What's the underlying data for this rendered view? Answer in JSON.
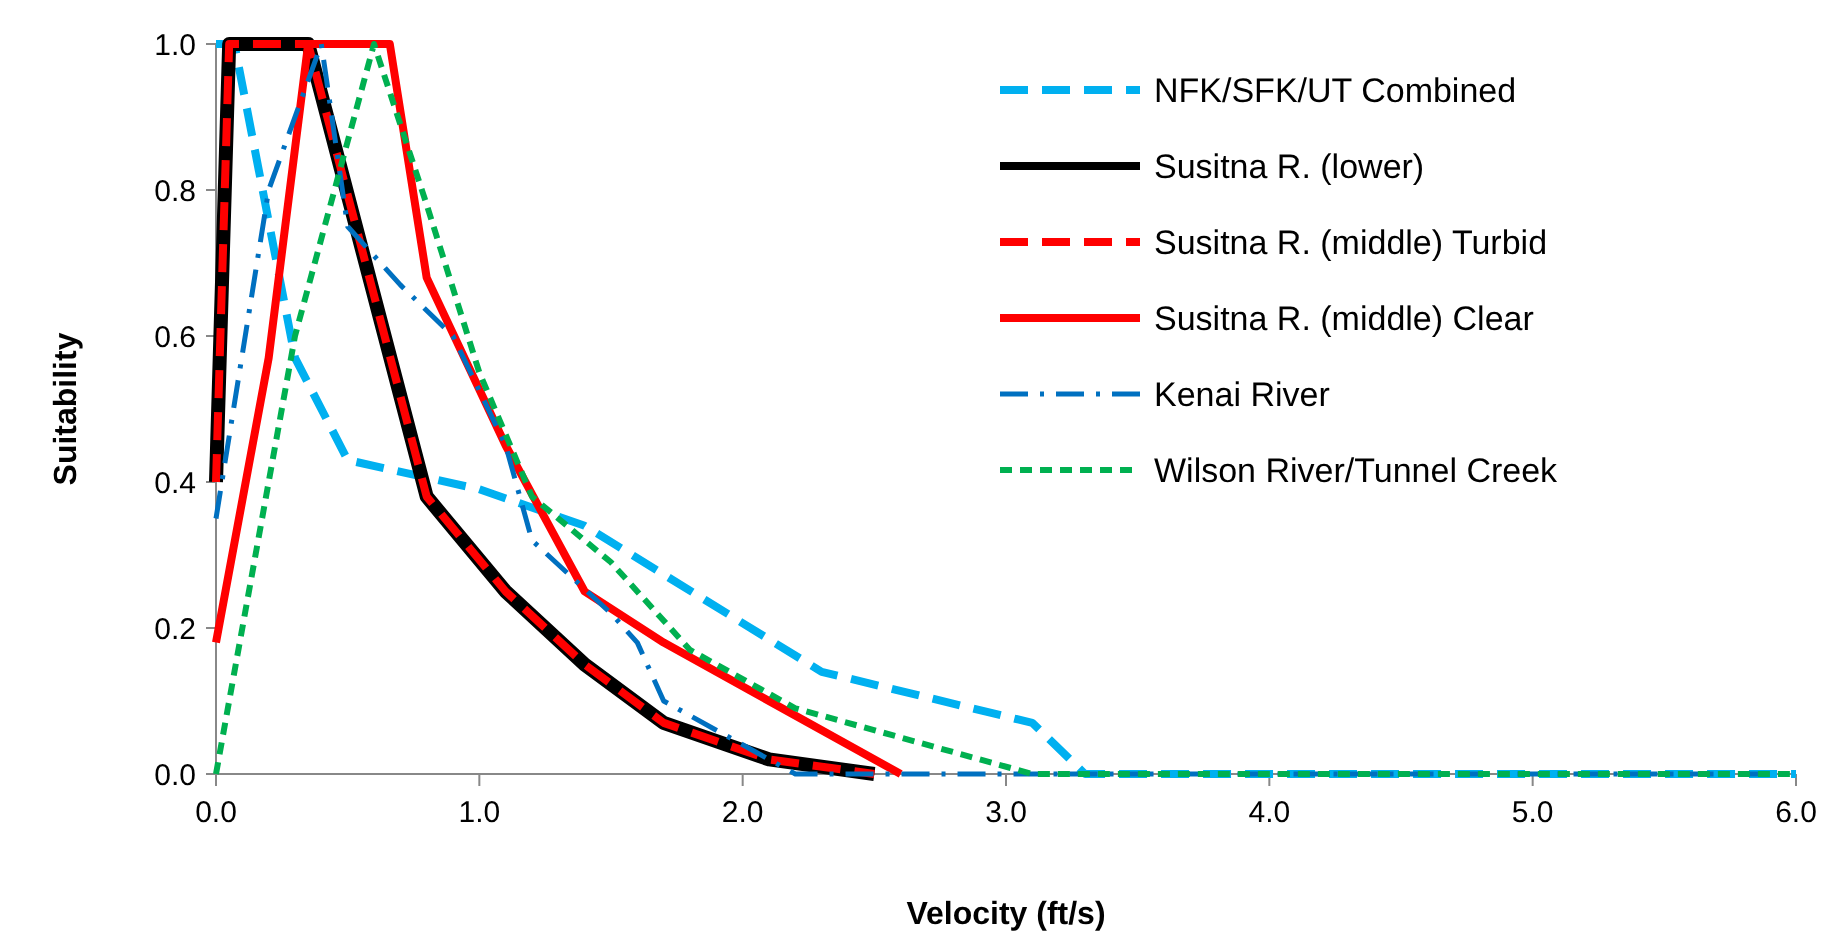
{
  "chart_data": {
    "type": "line",
    "xlabel": "Velocity (ft/s)",
    "ylabel": "Suitability",
    "xlim": [
      0,
      6
    ],
    "ylim": [
      0,
      1
    ],
    "xticks": [
      {
        "value": 0,
        "label": "0.0"
      },
      {
        "value": 1,
        "label": "1.0"
      },
      {
        "value": 2,
        "label": "2.0"
      },
      {
        "value": 3,
        "label": "3.0"
      },
      {
        "value": 4,
        "label": "4.0"
      },
      {
        "value": 5,
        "label": "5.0"
      },
      {
        "value": 6,
        "label": "6.0"
      }
    ],
    "yticks": [
      {
        "value": 0,
        "label": "0.0"
      },
      {
        "value": 0.2,
        "label": "0.2"
      },
      {
        "value": 0.4,
        "label": "0.4"
      },
      {
        "value": 0.6,
        "label": "0.6"
      },
      {
        "value": 0.8,
        "label": "0.8"
      },
      {
        "value": 1,
        "label": "1.0"
      }
    ],
    "grid": false,
    "legend": "top right",
    "marker": "none",
    "series": [
      {
        "name": "NFK/SFK/UT Combined",
        "color": "#00b0f0",
        "line_style": "dashed",
        "x": [
          0,
          0.07,
          0.3,
          0.5,
          1.0,
          1.4,
          2.3,
          3.1,
          3.3,
          6
        ],
        "values": [
          1,
          1,
          0.57,
          0.43,
          0.39,
          0.34,
          0.14,
          0.07,
          0,
          0
        ]
      },
      {
        "name": "Susitna R. (lower)",
        "color": "#000000",
        "line_style": "solid",
        "x": [
          0,
          0.05,
          0.35,
          0.8,
          1.1,
          1.4,
          1.7,
          2.1,
          2.5
        ],
        "values": [
          0.4,
          1,
          1,
          0.38,
          0.25,
          0.15,
          0.07,
          0.02,
          0
        ]
      },
      {
        "name": "Susitna R. (middle) Turbid",
        "color": "#ff0000",
        "line_style": "dashed",
        "x": [
          0,
          0.05,
          0.35,
          0.8,
          1.1,
          1.4,
          1.7,
          2.1,
          2.5
        ],
        "values": [
          0.4,
          1,
          1,
          0.38,
          0.25,
          0.15,
          0.07,
          0.02,
          0
        ]
      },
      {
        "name": "Susitna R. (middle) Clear",
        "color": "#ff0000",
        "line_style": "solid",
        "x": [
          0,
          0.2,
          0.35,
          0.66,
          0.8,
          1.1,
          1.4,
          1.7,
          2.6
        ],
        "values": [
          0.18,
          0.57,
          1,
          1,
          0.68,
          0.45,
          0.25,
          0.18,
          0
        ]
      },
      {
        "name": "Kenai River",
        "color": "#0070c0",
        "line_style": "dashdot",
        "x": [
          0,
          0.2,
          0.4,
          0.5,
          0.7,
          0.9,
          1.1,
          1.2,
          1.5,
          1.6,
          1.7,
          2.0,
          2.2,
          6
        ],
        "values": [
          0.35,
          0.8,
          1,
          0.75,
          0.67,
          0.6,
          0.45,
          0.32,
          0.22,
          0.18,
          0.1,
          0.04,
          0,
          0
        ]
      },
      {
        "name": "Wilson River/Tunnel Creek",
        "color": "#00b050",
        "line_style": "dotted",
        "x": [
          0,
          0.3,
          0.6,
          0.8,
          1.0,
          1.2,
          1.5,
          1.8,
          2.2,
          2.6,
          3.1,
          6
        ],
        "values": [
          0,
          0.6,
          1,
          0.78,
          0.55,
          0.38,
          0.29,
          0.17,
          0.09,
          0.05,
          0,
          0
        ]
      }
    ]
  }
}
